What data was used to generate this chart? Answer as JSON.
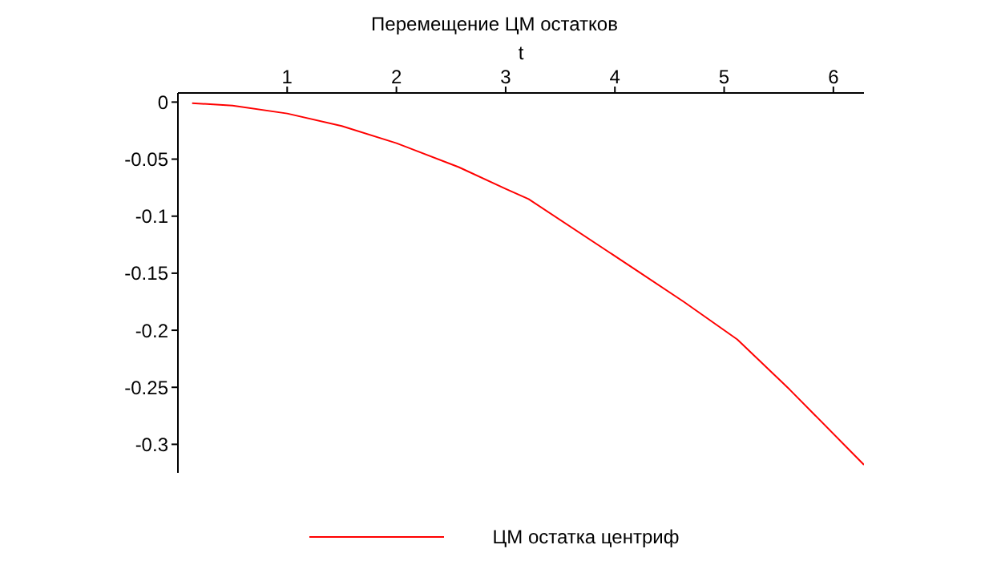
{
  "chart_data": {
    "type": "line",
    "title": "Перемещение ЦМ остатков",
    "xlabel": "t",
    "x": [
      0.13,
      0.5,
      1,
      1.5,
      2,
      2.57,
      3,
      3.21,
      4.19,
      4.63,
      5.12,
      5.6,
      6.28
    ],
    "series": [
      {
        "name": "ЦМ остатка центриф",
        "color": "#ff0000",
        "values": [
          -0.001,
          -0.003,
          -0.01,
          -0.021,
          -0.036,
          -0.057,
          -0.076,
          -0.085,
          -0.147,
          -0.175,
          -0.208,
          -0.252,
          -0.318
        ]
      }
    ],
    "xlim": [
      0,
      6.28
    ],
    "xticks": [
      1,
      2,
      3,
      4,
      5,
      6
    ],
    "ylim": [
      -0.325,
      0.008
    ],
    "yticks": [
      0,
      -0.05,
      -0.1,
      -0.15,
      -0.2,
      -0.25,
      -0.3
    ],
    "grid": false,
    "legend": "bottom",
    "marker": "none",
    "line_style": "solid"
  }
}
